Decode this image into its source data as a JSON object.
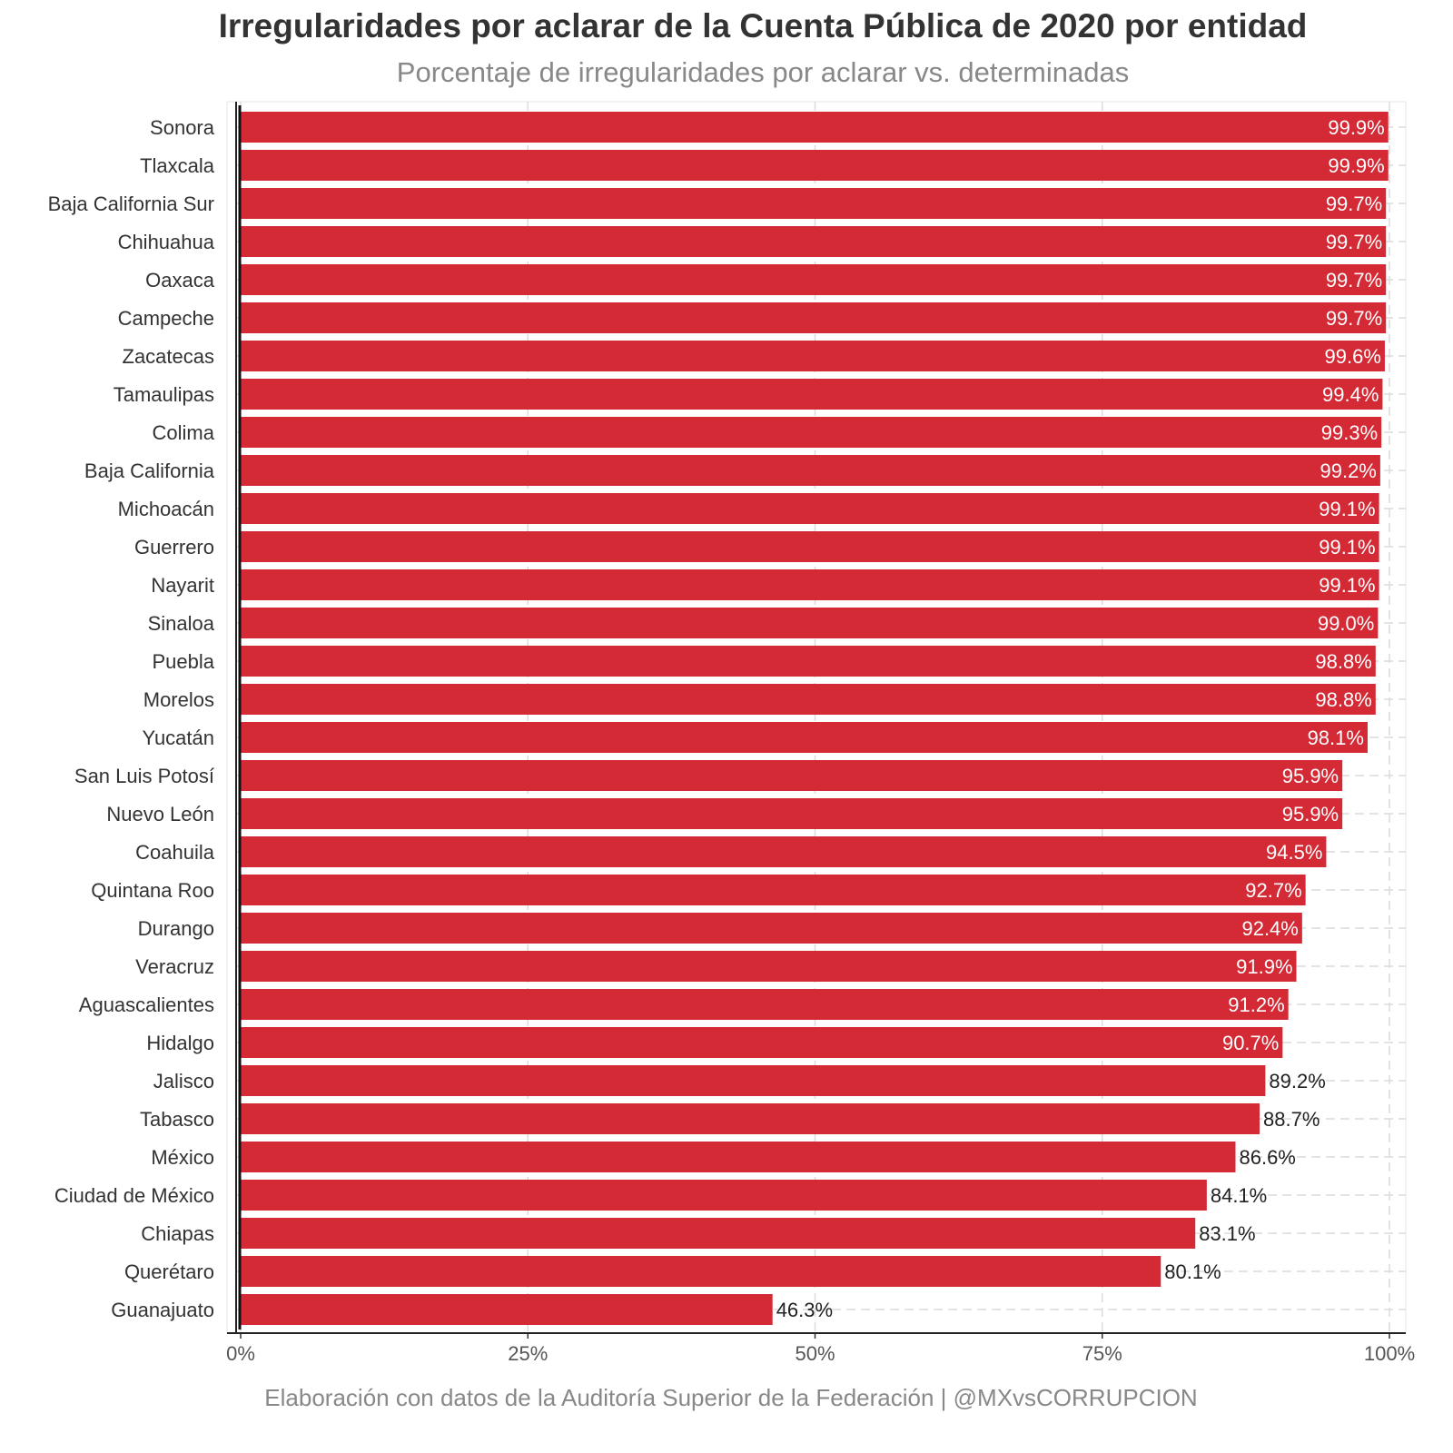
{
  "chart_data": {
    "type": "bar",
    "orientation": "horizontal",
    "title": "Irregularidades por aclarar de la Cuenta Pública de 2020 por entidad",
    "subtitle": "Porcentaje de irregularidades por aclarar vs. determinadas",
    "caption": "Elaboración con datos de la Auditoría Superior de la Federación | @MXvsCORRUPCION",
    "xlabel": "",
    "ylabel": "",
    "xlim": [
      0,
      100
    ],
    "x_ticks": [
      "0%",
      "25%",
      "50%",
      "75%",
      "100%"
    ],
    "grid": "dashed vertical",
    "bar_color": "#d42a36",
    "categories": [
      "Sonora",
      "Tlaxcala",
      "Baja California Sur",
      "Chihuahua",
      "Oaxaca",
      "Campeche",
      "Zacatecas",
      "Tamaulipas",
      "Colima",
      "Baja California",
      "Michoacán",
      "Guerrero",
      "Nayarit",
      "Sinaloa",
      "Puebla",
      "Morelos",
      "Yucatán",
      "San Luis Potosí",
      "Nuevo León",
      "Coahuila",
      "Quintana Roo",
      "Durango",
      "Veracruz",
      "Aguascalientes",
      "Hidalgo",
      "Jalisco",
      "Tabasco",
      "México",
      "Ciudad de México",
      "Chiapas",
      "Querétaro",
      "Guanajuato"
    ],
    "values": [
      99.9,
      99.9,
      99.7,
      99.7,
      99.7,
      99.7,
      99.6,
      99.4,
      99.3,
      99.2,
      99.1,
      99.1,
      99.1,
      99.0,
      98.8,
      98.8,
      98.1,
      95.9,
      95.9,
      94.5,
      92.7,
      92.4,
      91.9,
      91.2,
      90.7,
      89.2,
      88.7,
      86.6,
      84.1,
      83.1,
      80.1,
      46.3
    ],
    "value_labels": [
      "99.9%",
      "99.9%",
      "99.7%",
      "99.7%",
      "99.7%",
      "99.7%",
      "99.6%",
      "99.4%",
      "99.3%",
      "99.2%",
      "99.1%",
      "99.1%",
      "99.1%",
      "99.0%",
      "98.8%",
      "98.8%",
      "98.1%",
      "95.9%",
      "95.9%",
      "94.5%",
      "92.7%",
      "92.4%",
      "91.9%",
      "91.2%",
      "90.7%",
      "89.2%",
      "88.7%",
      "86.6%",
      "84.1%",
      "83.1%",
      "80.1%",
      "46.3%"
    ]
  }
}
